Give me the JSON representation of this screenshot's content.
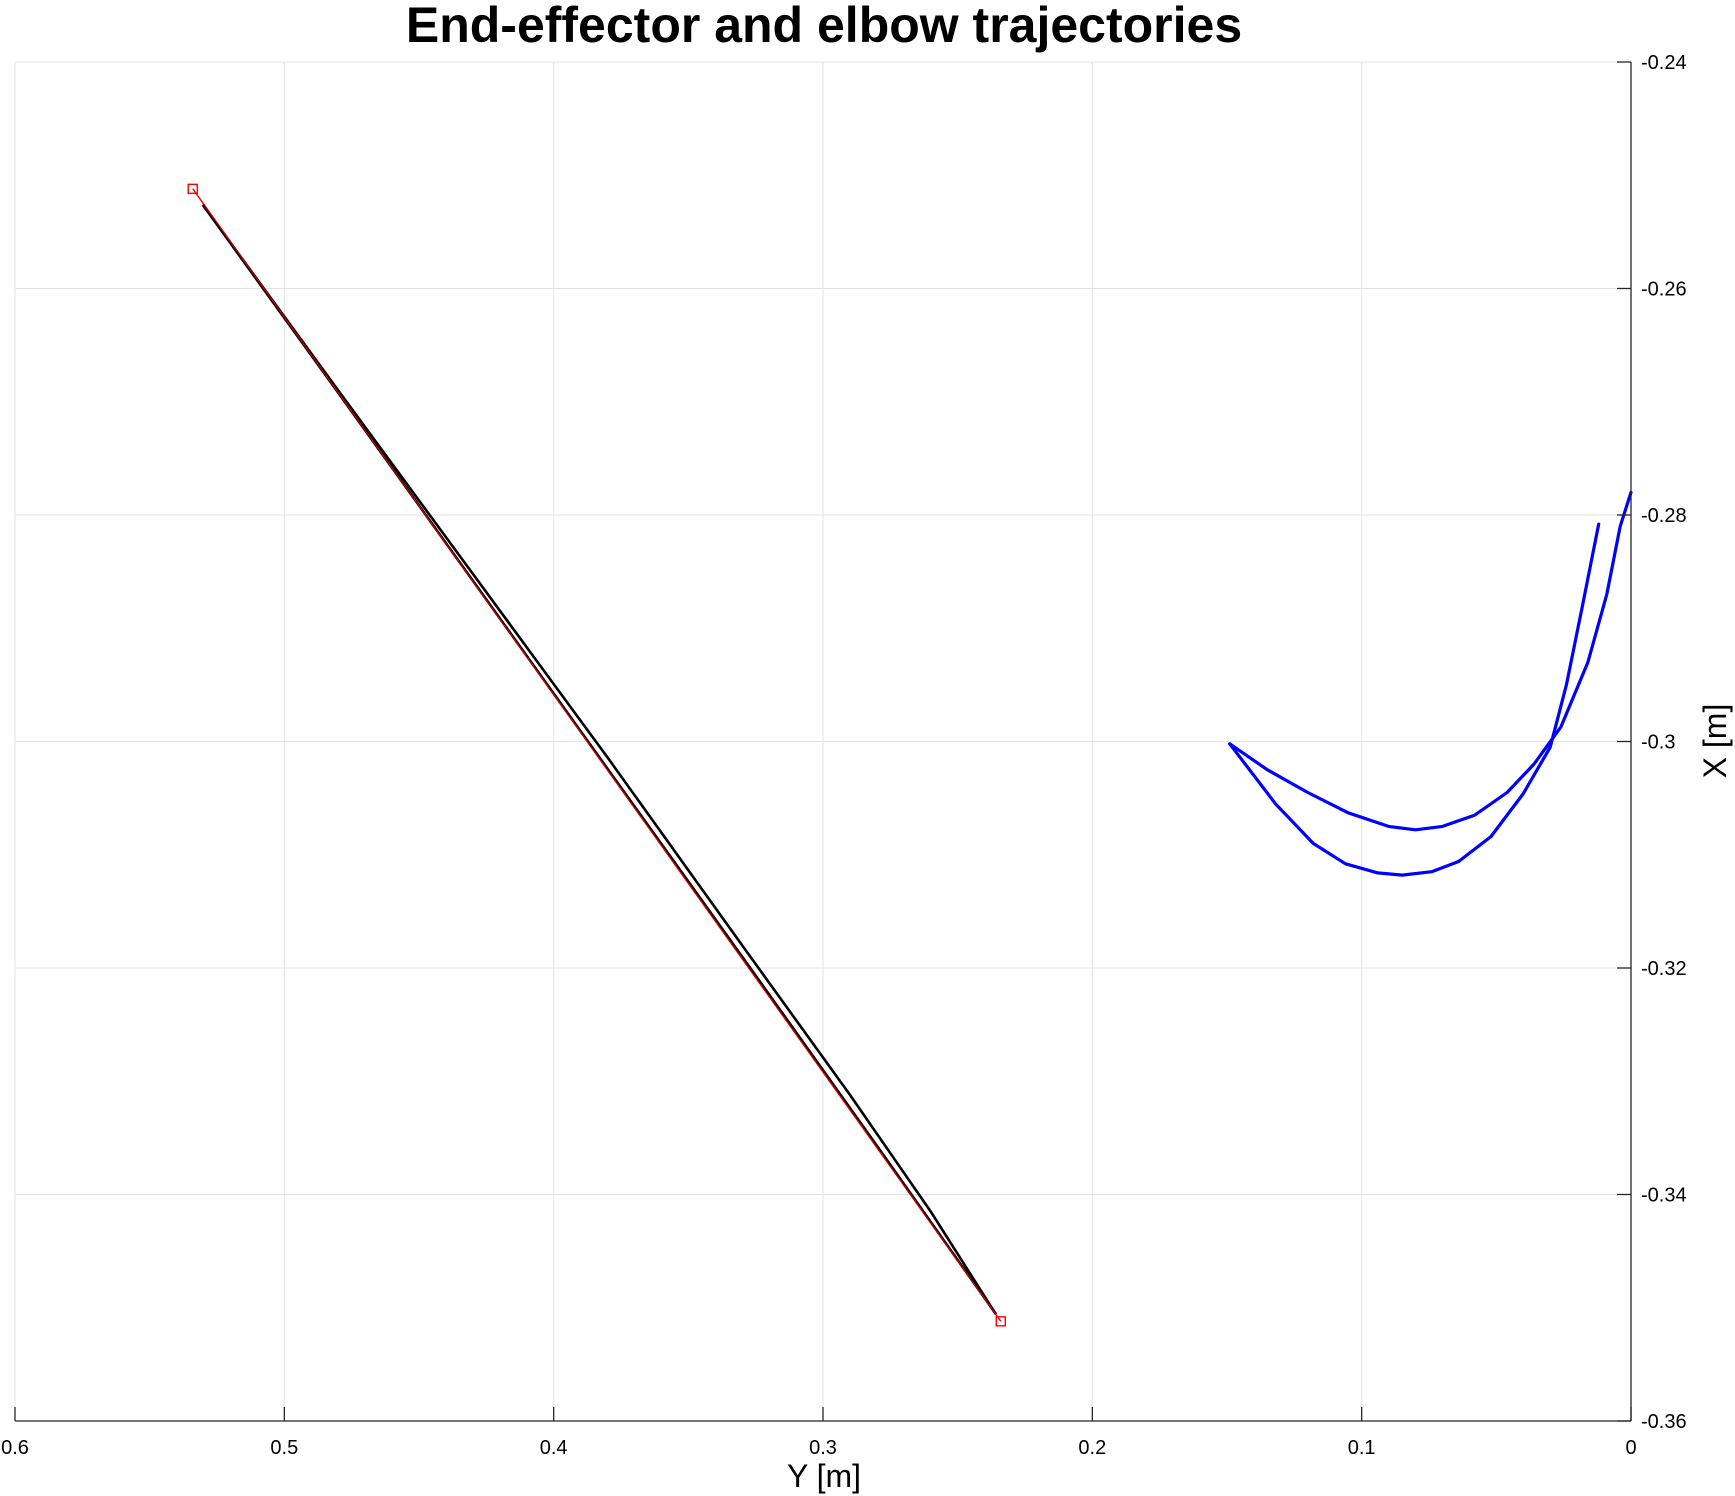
{
  "chart_data": {
    "type": "line",
    "title": "End-effector and elbow trajectories",
    "xlabel": "Y [m]",
    "ylabel": "X [m]",
    "x_reversed": true,
    "y_axis_location": "right",
    "xlim": [
      0,
      0.6
    ],
    "ylim": [
      -0.36,
      -0.24
    ],
    "xticks": [
      0.6,
      0.5,
      0.4,
      0.3,
      0.2,
      0.1,
      0
    ],
    "xtick_labels": [
      "0.6",
      "0.5",
      "0.4",
      "0.3",
      "0.2",
      "0.1",
      "0"
    ],
    "yticks": [
      -0.24,
      -0.26,
      -0.28,
      -0.3,
      -0.32,
      -0.34,
      -0.36
    ],
    "ytick_labels": [
      "-0.24",
      "-0.26",
      "-0.28",
      "-0.3",
      "-0.32",
      "-0.34",
      "-0.36"
    ],
    "grid": true,
    "legend": false,
    "colors": {
      "reference": "#ff0000",
      "end_effector": "#000000",
      "elbow": "#0000ff"
    },
    "series": [
      {
        "role": "reference",
        "color": "#ff0000",
        "marker": "square",
        "points": [
          [
            0.534,
            -0.2512
          ],
          [
            0.234,
            -0.3512
          ]
        ]
      },
      {
        "role": "end-effector-out",
        "color": "#000000",
        "points": [
          [
            0.53,
            -0.2527
          ],
          [
            0.48,
            -0.2692
          ],
          [
            0.43,
            -0.2858
          ],
          [
            0.38,
            -0.3024
          ],
          [
            0.33,
            -0.319
          ],
          [
            0.28,
            -0.3357
          ],
          [
            0.236,
            -0.3505
          ]
        ]
      },
      {
        "role": "end-effector-back",
        "color": "#000000",
        "points": [
          [
            0.236,
            -0.3505
          ],
          [
            0.26,
            -0.3415
          ],
          [
            0.29,
            -0.3312
          ],
          [
            0.33,
            -0.318
          ],
          [
            0.38,
            -0.3014
          ],
          [
            0.43,
            -0.2852
          ],
          [
            0.48,
            -0.269
          ],
          [
            0.53,
            -0.2527
          ]
        ]
      },
      {
        "role": "elbow-out",
        "color": "#0000ff",
        "points": [
          [
            0.149,
            -0.3002
          ],
          [
            0.135,
            -0.3025
          ],
          [
            0.12,
            -0.3045
          ],
          [
            0.105,
            -0.3063
          ],
          [
            0.09,
            -0.3075
          ],
          [
            0.08,
            -0.3078
          ],
          [
            0.07,
            -0.3075
          ],
          [
            0.058,
            -0.3065
          ],
          [
            0.046,
            -0.3045
          ],
          [
            0.036,
            -0.302
          ],
          [
            0.026,
            -0.2987
          ],
          [
            0.016,
            -0.293
          ],
          [
            0.009,
            -0.287
          ],
          [
            0.004,
            -0.281
          ],
          [
            0.0,
            -0.278
          ]
        ]
      },
      {
        "role": "elbow-back",
        "color": "#0000ff",
        "points": [
          [
            0.149,
            -0.3002
          ],
          [
            0.132,
            -0.3055
          ],
          [
            0.118,
            -0.309
          ],
          [
            0.106,
            -0.3108
          ],
          [
            0.094,
            -0.3116
          ],
          [
            0.085,
            -0.3118
          ],
          [
            0.074,
            -0.3115
          ],
          [
            0.064,
            -0.3106
          ],
          [
            0.052,
            -0.3084
          ],
          [
            0.04,
            -0.3046
          ],
          [
            0.03,
            -0.3005
          ],
          [
            0.024,
            -0.295
          ],
          [
            0.018,
            -0.288
          ],
          [
            0.012,
            -0.2808
          ]
        ]
      }
    ]
  }
}
